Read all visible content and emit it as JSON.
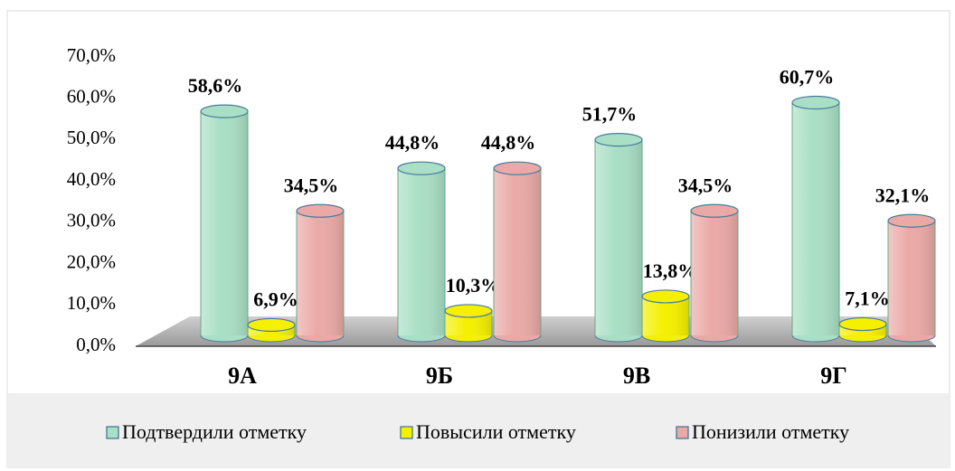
{
  "chart_data": {
    "type": "bar3d",
    "categories": [
      "9А",
      "9Б",
      "9В",
      "9Г"
    ],
    "series": [
      {
        "name": "Подтвердили отметку",
        "color": "#a9dfc4",
        "values": [
          58.6,
          44.8,
          51.7,
          60.7
        ],
        "value_labels": [
          "58,6%",
          "44,8%",
          "51,7%",
          "60,7%"
        ]
      },
      {
        "name": "Повысили отметку",
        "color": "#f5f000",
        "values": [
          6.9,
          10.3,
          13.8,
          7.1
        ],
        "value_labels": [
          "6,9%",
          "10,3%",
          "13,8%",
          "7,1%"
        ]
      },
      {
        "name": "Понизили отметку",
        "color": "#eaa9a6",
        "values": [
          34.5,
          44.8,
          34.5,
          32.1
        ],
        "value_labels": [
          "34,5%",
          "44,8%",
          "34,5%",
          "32,1%"
        ]
      }
    ],
    "ylim": [
      0,
      70
    ],
    "yticks": [
      {
        "value": 0,
        "label": "0,0%"
      },
      {
        "value": 10,
        "label": "10,0%"
      },
      {
        "value": 20,
        "label": "20,0%"
      },
      {
        "value": 30,
        "label": "30,0%"
      },
      {
        "value": 40,
        "label": "40,0%"
      },
      {
        "value": 50,
        "label": "50,0%"
      },
      {
        "value": 60,
        "label": "60,0%"
      },
      {
        "value": 70,
        "label": "70,0%"
      }
    ],
    "legend": "bottom"
  }
}
